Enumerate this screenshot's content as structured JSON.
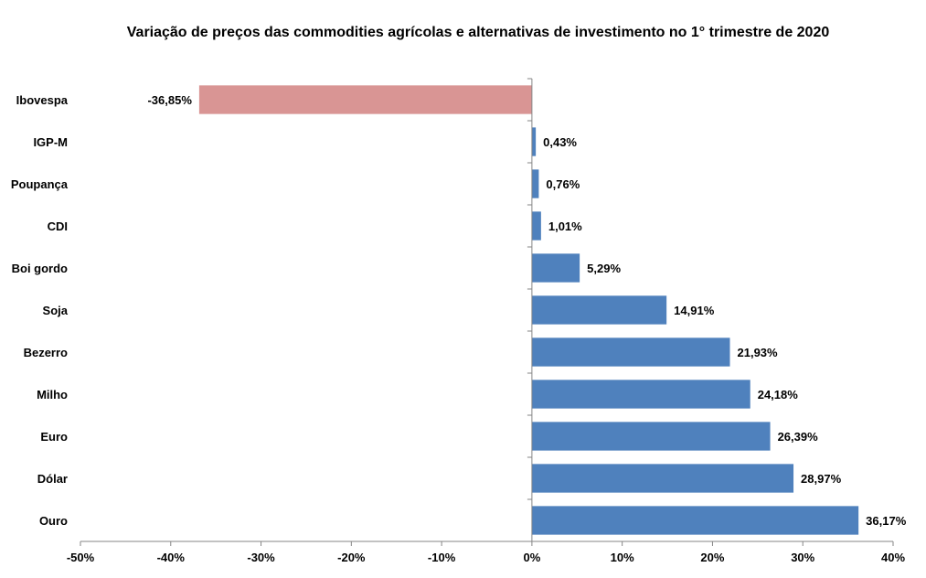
{
  "chart_data": {
    "type": "bar",
    "orientation": "horizontal",
    "title": "Variação de preços das commodities agrícolas e alternativas de investimento no 1° trimestre de 2020",
    "categories": [
      "Ibovespa",
      "IGP-M",
      "Poupança",
      "CDI",
      "Boi gordo",
      "Soja",
      "Bezerro",
      "Milho",
      "Euro",
      "Dólar",
      "Ouro"
    ],
    "values": [
      -36.85,
      0.43,
      0.76,
      1.01,
      5.29,
      14.91,
      21.93,
      24.18,
      26.39,
      28.97,
      36.17
    ],
    "data_labels": [
      "-36,85%",
      "0,43%",
      "0,76%",
      "1,01%",
      "5,29%",
      "14,91%",
      "21,93%",
      "24,18%",
      "26,39%",
      "28,97%",
      "36,17%"
    ],
    "xlim": [
      -50,
      40
    ],
    "x_ticks": [
      -50,
      -40,
      -30,
      -20,
      -10,
      0,
      10,
      20,
      30,
      40
    ],
    "x_tick_labels": [
      "-50%",
      "-40%",
      "-30%",
      "-20%",
      "-10%",
      "0%",
      "10%",
      "20%",
      "30%",
      "40%"
    ],
    "xlabel": "",
    "ylabel": "",
    "grid": false,
    "legend": "none",
    "colors": {
      "positive": "#4F81BD",
      "negative": "#D99594",
      "axis": "#868686"
    }
  }
}
